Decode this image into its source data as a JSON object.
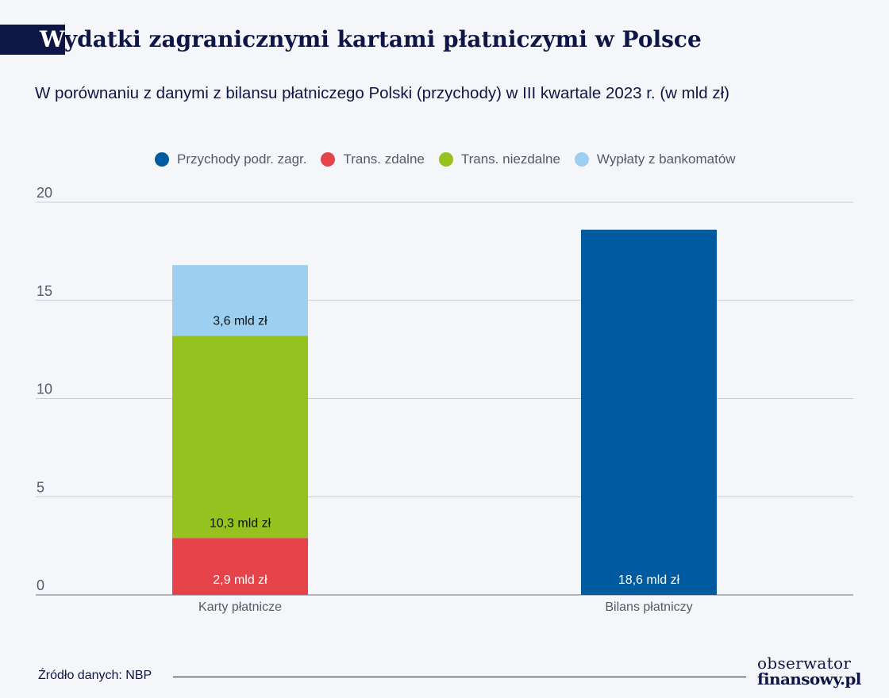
{
  "title": {
    "first_letter": "W",
    "rest": "ydatki zagranicznymi kartami płatniczymi w Polsce"
  },
  "subtitle": "W porównaniu z danymi z bilansu płatniczego Polski (przychody) w III kwartale 2023 r. (w mld zł)",
  "legend": [
    {
      "label": "Przychody podr. zagr.",
      "color": "#005aa0"
    },
    {
      "label": "Trans. zdalne",
      "color": "#e5424a"
    },
    {
      "label": "Trans. niezdalne",
      "color": "#96c21f"
    },
    {
      "label": "Wypłaty z bankomatów",
      "color": "#9dd0f0"
    }
  ],
  "chart_data": {
    "type": "bar",
    "stacked": true,
    "categories": [
      "Karty płatnicze",
      "Bilans płatniczy"
    ],
    "series": [
      {
        "name": "Przychody podr. zagr.",
        "color": "#005aa0",
        "values": [
          0,
          18.6
        ],
        "labels": [
          "",
          "18,6 mld zł"
        ]
      },
      {
        "name": "Trans. zdalne",
        "color": "#e5424a",
        "values": [
          2.9,
          0
        ],
        "labels": [
          "2,9 mld zł",
          ""
        ]
      },
      {
        "name": "Trans. niezdalne",
        "color": "#96c21f",
        "values": [
          10.3,
          0
        ],
        "labels": [
          "10,3 mld zł",
          ""
        ]
      },
      {
        "name": "Wypłaty z bankomatów",
        "color": "#9dd0f0",
        "values": [
          3.6,
          0
        ],
        "labels": [
          "3,6 mld zł",
          ""
        ]
      }
    ],
    "ylim": [
      0,
      20
    ],
    "yticks": [
      "0",
      "5",
      "10",
      "15",
      "20"
    ],
    "grid": true,
    "legend_position": "top"
  },
  "footer": {
    "source": "Źródło danych: NBP",
    "logo_line1": "obserwator",
    "logo_line2": "finansowy.pl"
  }
}
